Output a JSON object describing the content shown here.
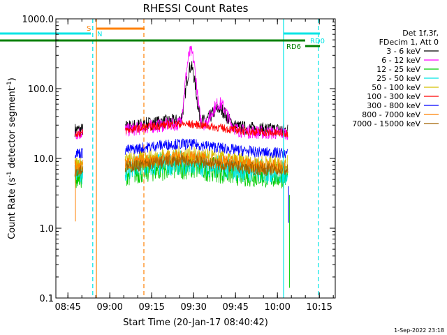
{
  "chart_data": {
    "type": "line",
    "title": "RHESSI Count Rates",
    "xlabel": "Start Time (20-Jan-17 08:40:42)",
    "ylabel_main": "Count Rate (s",
    "ylabel_exp1": "-1",
    "ylabel_mid": " detector segment",
    "ylabel_exp2": "-1",
    "ylabel_end": ")",
    "x_range_minutes": [
      0,
      100
    ],
    "y_scale": "log",
    "ylim": [
      0.1,
      1000
    ],
    "y_ticks": [
      {
        "value": 0.1,
        "label": "0.1"
      },
      {
        "value": 1,
        "label": "1.0"
      },
      {
        "value": 10,
        "label": "10.0"
      },
      {
        "value": 100,
        "label": "100.0"
      },
      {
        "value": 1000,
        "label": "1000.0"
      }
    ],
    "x_ticks": [
      {
        "value": 4.3,
        "label": "08:45"
      },
      {
        "value": 19.3,
        "label": "09:00"
      },
      {
        "value": 34.3,
        "label": "09:15"
      },
      {
        "value": 49.3,
        "label": "09:30"
      },
      {
        "value": 64.3,
        "label": "09:45"
      },
      {
        "value": 79.3,
        "label": "10:00"
      },
      {
        "value": 94.3,
        "label": "10:15"
      }
    ],
    "legend_header": [
      "Det 1f,3f,",
      "FDecim 1, Att 0"
    ],
    "legend_position": "right",
    "series": [
      {
        "name": "3 - 6 keV",
        "color": "#000000",
        "level": 30,
        "noise": 0.1,
        "peak": 200,
        "peak2": 60
      },
      {
        "name": "6 - 12 keV",
        "color": "#ff00ff",
        "level": 27,
        "noise": 0.1,
        "peak": 330,
        "peak2": 75
      },
      {
        "name": "12 - 25 keV",
        "color": "#00cc00",
        "level": 6.5,
        "noise": 0.18,
        "peak": 0,
        "peak2": 0
      },
      {
        "name": "25 - 50 keV",
        "color": "#00e5e5",
        "level": 7.5,
        "noise": 0.18,
        "peak": 0,
        "peak2": 0
      },
      {
        "name": "50 - 100 keV",
        "color": "#d4c000",
        "level": 9.5,
        "noise": 0.14,
        "peak": 0,
        "peak2": 0
      },
      {
        "name": "100 - 300 keV",
        "color": "#ff0000",
        "level": 27,
        "noise": 0.06,
        "peak": 0,
        "peak2": 0
      },
      {
        "name": "300 - 800 keV",
        "color": "#0000ff",
        "level": 14,
        "noise": 0.08,
        "peak": 0,
        "peak2": 0
      },
      {
        "name": "800 - 7000 keV",
        "color": "#ff8000",
        "level": 9,
        "noise": 0.1,
        "peak": 0,
        "peak2": 0
      },
      {
        "name": "7000 - 15000 keV",
        "color": "#a06000",
        "level": 8,
        "noise": 0.09,
        "peak": 0,
        "peak2": 0
      }
    ],
    "segments_minutes": [
      [
        6.8,
        9.7
      ],
      [
        24.8,
        83.1
      ]
    ],
    "markers": [
      {
        "label": "S",
        "color": "#ff8000"
      },
      {
        "label": "N",
        "color": "#00e5e5"
      },
      {
        "label": "RD0",
        "color": "#00e5e5"
      },
      {
        "label": "RD6",
        "color": "#008000"
      }
    ]
  },
  "footer": {
    "date": "1-Sep-2022 23:18"
  }
}
